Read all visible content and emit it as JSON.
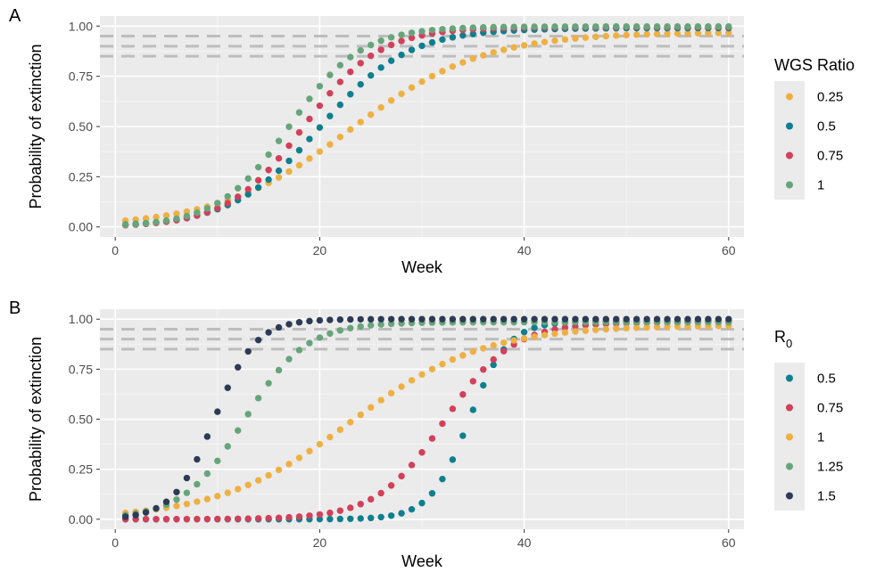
{
  "chart_data": [
    {
      "type": "scatter",
      "panel_letter": "A",
      "xlabel": "Week",
      "ylabel": "Probability of extinction",
      "xlim": [
        -1.5,
        61.5
      ],
      "ylim": [
        -0.05,
        1.05
      ],
      "x_ticks": [
        0,
        20,
        40,
        60
      ],
      "x_tick_labels": [
        "0",
        "20",
        "40",
        "60"
      ],
      "y_ticks": [
        0,
        0.25,
        0.5,
        0.75,
        1.0
      ],
      "y_tick_labels": [
        "0.00",
        "0.25",
        "0.50",
        "0.75",
        "1.00"
      ],
      "reference_lines": [
        0.85,
        0.9,
        0.95
      ],
      "reference_line_style": "dashed",
      "grid": true,
      "legend_title": "WGS Ratio",
      "legend_position": "right",
      "series": [
        {
          "name": "0.25",
          "color": "#EFB042",
          "shape": "sigmoid",
          "midpoint": 23.0,
          "scale": 6.5,
          "plateau": 0.97
        },
        {
          "name": "0.5",
          "color": "#0E7F8F",
          "shape": "sigmoid",
          "midpoint": 20.0,
          "scale": 4.3,
          "plateau": 0.99
        },
        {
          "name": "0.75",
          "color": "#D2405A",
          "shape": "sigmoid",
          "midpoint": 18.4,
          "scale": 3.7,
          "plateau": 0.995
        },
        {
          "name": "1",
          "color": "#66A57A",
          "shape": "sigmoid",
          "midpoint": 17.0,
          "scale": 3.5,
          "plateau": 0.998
        }
      ]
    },
    {
      "type": "scatter",
      "panel_letter": "B",
      "xlabel": "Week",
      "ylabel": "Probability of extinction",
      "xlim": [
        -1.5,
        61.5
      ],
      "ylim": [
        -0.05,
        1.05
      ],
      "x_ticks": [
        0,
        20,
        40,
        60
      ],
      "x_tick_labels": [
        "0",
        "20",
        "40",
        "60"
      ],
      "y_ticks": [
        0,
        0.25,
        0.5,
        0.75,
        1.0
      ],
      "y_tick_labels": [
        "0.00",
        "0.25",
        "0.50",
        "0.75",
        "1.00"
      ],
      "reference_lines": [
        0.85,
        0.9,
        0.95
      ],
      "reference_line_style": "dashed",
      "grid": true,
      "legend_title": "R",
      "legend_title_subscript": "0",
      "legend_position": "right",
      "series": [
        {
          "name": "0.5",
          "color": "#0E7F8F",
          "shape": "sigmoid",
          "midpoint": 34.6,
          "scale": 1.9,
          "plateau": 0.99
        },
        {
          "name": "0.75",
          "color": "#D2405A",
          "shape": "sigmoid",
          "midpoint": 32.2,
          "scale": 3.3,
          "plateau": 0.985
        },
        {
          "name": "1",
          "color": "#EFB042",
          "shape": "sigmoid",
          "midpoint": 23.0,
          "scale": 6.5,
          "plateau": 0.97
        },
        {
          "name": "1.25",
          "color": "#66A57A",
          "shape": "sigmoid",
          "midpoint": 12.6,
          "scale": 3.0,
          "plateau": 0.985
        },
        {
          "name": "1.5",
          "color": "#2C3B55",
          "shape": "sigmoid",
          "midpoint": 9.7,
          "scale": 2.0,
          "plateau": 1.0
        }
      ]
    }
  ]
}
